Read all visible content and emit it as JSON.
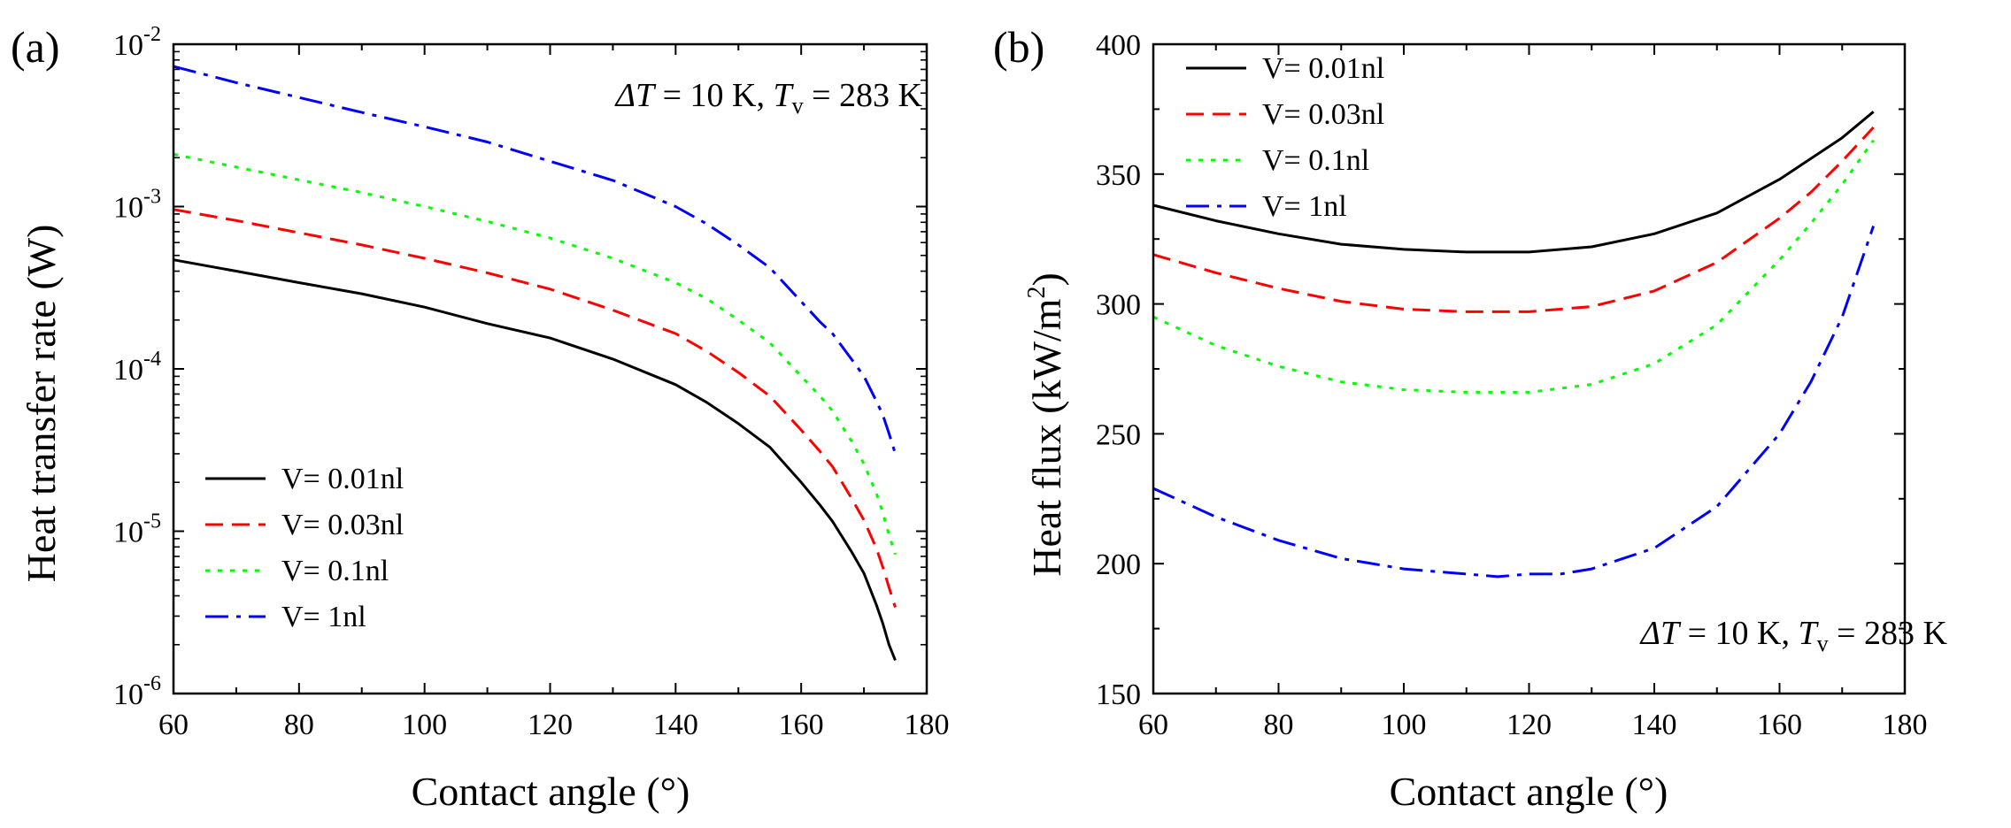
{
  "chart_data": [
    {
      "panel_label": "(a)",
      "type": "line",
      "xlabel": "Contact angle (°)",
      "ylabel": "Heat transfer rate (W)",
      "yscale": "log",
      "xlim": [
        60,
        180
      ],
      "ylim": [
        1e-06,
        0.01
      ],
      "x_ticks": [
        {
          "value": 60,
          "label": "60"
        },
        {
          "value": 80,
          "label": "80"
        },
        {
          "value": 100,
          "label": "100"
        },
        {
          "value": 120,
          "label": "120"
        },
        {
          "value": 140,
          "label": "140"
        },
        {
          "value": 160,
          "label": "160"
        },
        {
          "value": 180,
          "label": "180"
        }
      ],
      "y_ticks": [
        {
          "value": 1e-06,
          "base": "10",
          "exp": "-6"
        },
        {
          "value": 1e-05,
          "base": "10",
          "exp": "-5"
        },
        {
          "value": 0.0001,
          "base": "10",
          "exp": "-4"
        },
        {
          "value": 0.001,
          "base": "10",
          "exp": "-3"
        },
        {
          "value": 0.01,
          "base": "10",
          "exp": "-2"
        }
      ],
      "annotation": {
        "dT": "ΔT",
        "dT_value": " = 10 K, ",
        "Tv": "T",
        "Tv_sub": "v",
        "Tv_value": " = 283 K"
      },
      "legend_position": "lower-left",
      "series": [
        {
          "name": "V= 0.01nl",
          "color": "#000000",
          "dash": "solid",
          "x": [
            60,
            70,
            80,
            90,
            100,
            110,
            120,
            130,
            140,
            145,
            150,
            155,
            160,
            163,
            165,
            168,
            170,
            172,
            173,
            174,
            175
          ],
          "y": [
            0.00047,
            0.0004,
            0.00034,
            0.00029,
            0.00024,
            0.00019,
            0.000155,
            0.000115,
            8e-05,
            6.2e-05,
            4.6e-05,
            3.3e-05,
            2e-05,
            1.45e-05,
            1.15e-05,
            7.5e-06,
            5.5e-06,
            3.5e-06,
            2.7e-06,
            2e-06,
            1.6e-06
          ]
        },
        {
          "name": "V= 0.03nl",
          "color": "#ff0000",
          "dash": "dash",
          "x": [
            60,
            70,
            80,
            90,
            100,
            110,
            120,
            130,
            140,
            145,
            150,
            155,
            160,
            163,
            165,
            168,
            170,
            172,
            173,
            174,
            175
          ],
          "y": [
            0.00096,
            0.00082,
            0.00069,
            0.00058,
            0.00048,
            0.00039,
            0.00031,
            0.00023,
            0.000165,
            0.000128,
            9.5e-05,
            6.8e-05,
            4.2e-05,
            3.1e-05,
            2.5e-05,
            1.6e-05,
            1.17e-05,
            7.8e-06,
            6e-06,
            4.5e-06,
            3.4e-06
          ]
        },
        {
          "name": "V= 0.1nl",
          "color": "#00ff00",
          "dash": "dot",
          "x": [
            60,
            70,
            80,
            90,
            100,
            110,
            120,
            130,
            140,
            145,
            150,
            155,
            160,
            163,
            165,
            168,
            170,
            172,
            173,
            174,
            175
          ],
          "y": [
            0.0021,
            0.00175,
            0.00146,
            0.00122,
            0.001,
            0.00081,
            0.00064,
            0.00048,
            0.00034,
            0.00027,
            0.0002,
            0.000145,
            9e-05,
            6.8e-05,
            5.5e-05,
            3.6e-05,
            2.6e-05,
            1.7e-05,
            1.3e-05,
            9.5e-06,
            7.2e-06
          ]
        },
        {
          "name": "V= 1nl",
          "color": "#0000ff",
          "dash": "dashdot",
          "x": [
            60,
            70,
            80,
            90,
            100,
            110,
            120,
            130,
            140,
            145,
            150,
            155,
            160,
            163,
            165,
            168,
            170,
            172,
            173,
            174,
            175
          ],
          "y": [
            0.0073,
            0.0058,
            0.0047,
            0.0038,
            0.0031,
            0.0025,
            0.0019,
            0.00145,
            0.001,
            0.00078,
            0.00058,
            0.00042,
            0.00026,
            0.000195,
            0.000165,
            0.000115,
            9e-05,
            6.3e-05,
            5.2e-05,
            4e-05,
            3e-05
          ]
        }
      ]
    },
    {
      "panel_label": "(b)",
      "type": "line",
      "xlabel": "Contact angle (°)",
      "ylabel": "Heat flux (kW/m",
      "ylabel_sup": "2",
      "ylabel_end": ")",
      "yscale": "linear",
      "xlim": [
        60,
        180
      ],
      "ylim": [
        150,
        400
      ],
      "x_ticks": [
        {
          "value": 60,
          "label": "60"
        },
        {
          "value": 80,
          "label": "80"
        },
        {
          "value": 100,
          "label": "100"
        },
        {
          "value": 120,
          "label": "120"
        },
        {
          "value": 140,
          "label": "140"
        },
        {
          "value": 160,
          "label": "160"
        },
        {
          "value": 180,
          "label": "180"
        }
      ],
      "y_ticks": [
        {
          "value": 150,
          "label": "150"
        },
        {
          "value": 200,
          "label": "200"
        },
        {
          "value": 250,
          "label": "250"
        },
        {
          "value": 300,
          "label": "300"
        },
        {
          "value": 350,
          "label": "350"
        },
        {
          "value": 400,
          "label": "400"
        }
      ],
      "annotation": {
        "dT": "ΔT",
        "dT_value": " = 10 K, ",
        "Tv": "T",
        "Tv_sub": "v",
        "Tv_value": " = 283 K"
      },
      "legend_position": "upper-left",
      "series": [
        {
          "name": "V= 0.01nl",
          "color": "#000000",
          "dash": "solid",
          "x": [
            60,
            70,
            80,
            90,
            100,
            110,
            115,
            120,
            130,
            140,
            150,
            160,
            165,
            170,
            175
          ],
          "y": [
            338,
            332,
            327,
            323,
            321,
            320,
            320,
            320,
            322,
            327,
            335,
            348,
            356,
            364,
            374
          ]
        },
        {
          "name": "V= 0.03nl",
          "color": "#ff0000",
          "dash": "dash",
          "x": [
            60,
            70,
            80,
            90,
            100,
            110,
            115,
            120,
            130,
            140,
            150,
            160,
            165,
            170,
            175
          ],
          "y": [
            319,
            312,
            306,
            301,
            298,
            297,
            297,
            297,
            299,
            305,
            316,
            333,
            343,
            355,
            368
          ]
        },
        {
          "name": "V= 0.1nl",
          "color": "#00ff00",
          "dash": "dot",
          "x": [
            60,
            70,
            80,
            90,
            100,
            110,
            115,
            120,
            130,
            140,
            150,
            160,
            165,
            170,
            175
          ],
          "y": [
            295,
            284,
            276,
            270,
            267,
            266,
            266,
            266,
            269,
            277,
            292,
            317,
            331,
            346,
            363
          ]
        },
        {
          "name": "V= 1nl",
          "color": "#0000ff",
          "dash": "dashdot",
          "x": [
            60,
            70,
            80,
            90,
            100,
            110,
            115,
            120,
            125,
            130,
            140,
            150,
            160,
            165,
            170,
            175
          ],
          "y": [
            229,
            218,
            209,
            202,
            198,
            196,
            195,
            196,
            196,
            198,
            206,
            222,
            250,
            270,
            295,
            330
          ]
        }
      ]
    }
  ]
}
